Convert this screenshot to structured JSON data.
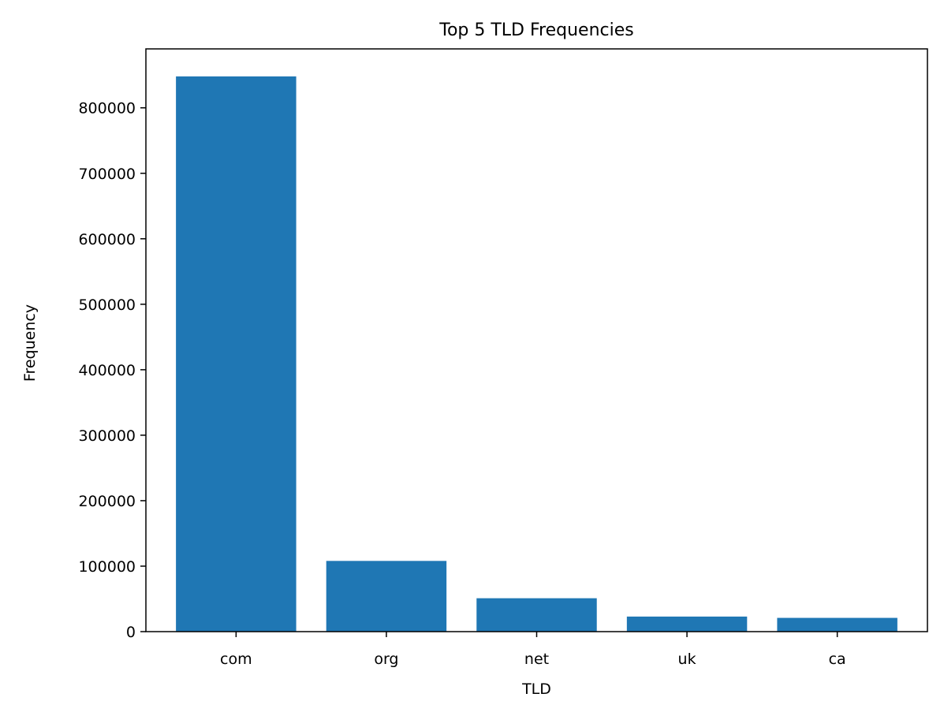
{
  "chart_data": {
    "type": "bar",
    "title": "Top 5 TLD Frequencies",
    "xlabel": "TLD",
    "ylabel": "Frequency",
    "categories": [
      "com",
      "org",
      "net",
      "uk",
      "ca"
    ],
    "values": [
      848000,
      108000,
      51000,
      23000,
      21000
    ],
    "ylim": [
      0,
      890000
    ],
    "yticks": [
      0,
      100000,
      200000,
      300000,
      400000,
      500000,
      600000,
      700000,
      800000
    ],
    "ytick_labels": [
      "0",
      "100000",
      "200000",
      "300000",
      "400000",
      "500000",
      "600000",
      "700000",
      "800000"
    ],
    "bar_color": "#1f77b4",
    "grid": false,
    "legend": false
  }
}
